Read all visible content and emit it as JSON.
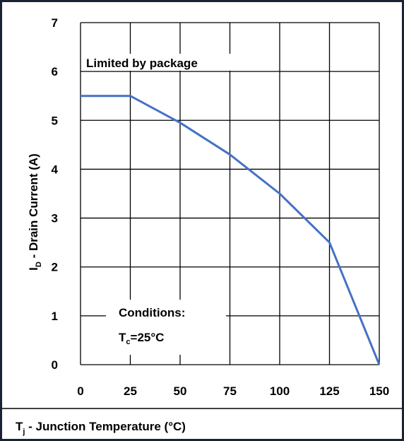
{
  "chart_data": {
    "type": "line",
    "xlabel": {
      "main": "T",
      "sub": "j",
      "rest": " - Junction Temperature (°C)"
    },
    "ylabel": {
      "main": "I",
      "sub": "D",
      "rest": " - Drain Current (A)"
    },
    "x_ticks": [
      "0",
      "25",
      "50",
      "75",
      "100",
      "125",
      "150"
    ],
    "y_ticks": [
      "0",
      "1",
      "2",
      "3",
      "4",
      "5",
      "6",
      "7"
    ],
    "xlim": [
      0,
      150
    ],
    "ylim": [
      0,
      7
    ],
    "grid": true,
    "series": [
      {
        "color": "#4472c4",
        "x": [
          0,
          25,
          50,
          75,
          100,
          125,
          150
        ],
        "y": [
          5.5,
          5.5,
          4.95,
          4.3,
          3.5,
          2.5,
          0
        ]
      }
    ],
    "annotations": {
      "package": "Limited by package",
      "conditions_title": "Conditions:",
      "conditions_main": "T",
      "conditions_sub": "c",
      "conditions_rest": "=25°C"
    }
  }
}
